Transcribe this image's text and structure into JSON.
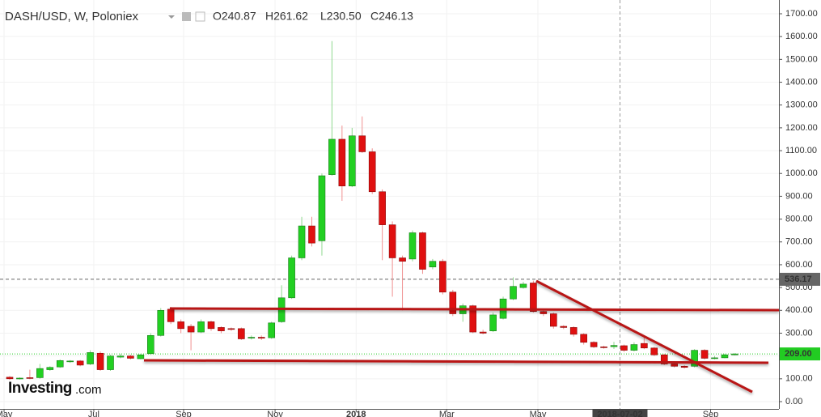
{
  "chart_data": {
    "type": "candlestick",
    "header": {
      "symbol": "DASH/USD, W, Poloniex",
      "open": "O240.87",
      "high": "H261.62",
      "low": "L230.50",
      "close": "C246.13"
    },
    "watermark": {
      "brand": "Investing",
      "suffix": ".com"
    },
    "ohlc": {
      "open": [
        107,
        100,
        105,
        105,
        140,
        152,
        175,
        178,
        165,
        212,
        140,
        195,
        200,
        188,
        210,
        290,
        405,
        350,
        330,
        305,
        350,
        325,
        320,
        320,
        280,
        282,
        280,
        350,
        455,
        630,
        770,
        705,
        995,
        1150,
        945,
        1165,
        1095,
        920,
        775,
        630,
        625,
        740,
        590,
        615,
        480,
        385,
        420,
        305,
        310,
        365,
        450,
        500,
        520,
        395,
        385,
        330,
        325,
        295,
        260,
        240,
        240.87,
        245,
        225,
        255,
        235,
        205,
        165,
        155,
        155,
        225,
        190,
        192,
        205
      ],
      "high": [
        112,
        106,
        140,
        165,
        155,
        185,
        182,
        182,
        225,
        220,
        205,
        210,
        205,
        210,
        300,
        410,
        415,
        360,
        340,
        360,
        355,
        330,
        325,
        325,
        290,
        290,
        350,
        510,
        640,
        810,
        810,
        1000,
        1580,
        1210,
        1200,
        1250,
        1110,
        930,
        790,
        640,
        750,
        745,
        625,
        625,
        490,
        430,
        425,
        315,
        390,
        460,
        545,
        525,
        530,
        400,
        390,
        335,
        330,
        300,
        265,
        245,
        261.62,
        250,
        260,
        290,
        240,
        210,
        170,
        160,
        230,
        230,
        200,
        210,
        212
      ],
      "low": [
        95,
        97,
        98,
        100,
        135,
        148,
        170,
        155,
        160,
        135,
        135,
        190,
        185,
        185,
        205,
        285,
        340,
        300,
        225,
        300,
        310,
        300,
        310,
        270,
        272,
        270,
        275,
        345,
        450,
        620,
        680,
        640,
        990,
        880,
        940,
        1090,
        910,
        620,
        460,
        400,
        615,
        560,
        580,
        470,
        375,
        350,
        300,
        295,
        305,
        360,
        445,
        495,
        390,
        375,
        320,
        318,
        285,
        250,
        235,
        232,
        230.5,
        218,
        220,
        230,
        200,
        160,
        150,
        145,
        150,
        185,
        185,
        190,
        203
      ],
      "close": [
        100,
        103,
        102,
        145,
        150,
        180,
        178,
        160,
        215,
        140,
        200,
        200,
        190,
        205,
        290,
        400,
        350,
        320,
        305,
        350,
        320,
        310,
        318,
        275,
        282,
        278,
        345,
        455,
        630,
        770,
        695,
        990,
        1150,
        945,
        1165,
        1095,
        920,
        775,
        630,
        615,
        740,
        580,
        615,
        480,
        385,
        420,
        305,
        300,
        380,
        450,
        505,
        515,
        395,
        385,
        330,
        325,
        295,
        260,
        240,
        238,
        246.13,
        225,
        250,
        235,
        205,
        165,
        155,
        150,
        225,
        190,
        192,
        205,
        209
      ]
    },
    "up_color": "#22d022",
    "down_color": "#e01010",
    "ylim": [
      0,
      1700
    ],
    "yticks": [
      {
        "value": 0,
        "label": "0.00"
      },
      {
        "value": 100,
        "label": "100.00"
      },
      {
        "value": 200,
        "label": "200.00"
      },
      {
        "value": 300,
        "label": "300.00"
      },
      {
        "value": 400,
        "label": "400.00"
      },
      {
        "value": 500,
        "label": "500.00"
      },
      {
        "value": 600,
        "label": "600.00"
      },
      {
        "value": 700,
        "label": "700.00"
      },
      {
        "value": 800,
        "label": "800.00"
      },
      {
        "value": 900,
        "label": "900.00"
      },
      {
        "value": 1000,
        "label": "1000.00"
      },
      {
        "value": 1100,
        "label": "1100.00"
      },
      {
        "value": 1200,
        "label": "1200.00"
      },
      {
        "value": 1300,
        "label": "1300.00"
      },
      {
        "value": 1400,
        "label": "1400.00"
      },
      {
        "value": 1500,
        "label": "1500.00"
      },
      {
        "value": 1600,
        "label": "1600.00"
      },
      {
        "value": 1700,
        "label": "1700.00"
      }
    ],
    "xticks": [
      {
        "value": -0.56,
        "label": "May"
      },
      {
        "value": 8.35,
        "label": "Jul"
      },
      {
        "value": 17.27,
        "label": "Sep"
      },
      {
        "value": 26.35,
        "label": "Nov"
      },
      {
        "value": 34.4,
        "label": "2018"
      },
      {
        "value": 43.4,
        "label": "Mar"
      },
      {
        "value": 52.45,
        "label": "May"
      },
      {
        "value": 69.6,
        "label": "Sep"
      }
    ],
    "crosshair": {
      "value": 60.6,
      "label": "2018-07-02"
    },
    "price_lines": [
      {
        "value": 536.17,
        "label": "536.17",
        "color": "#666666"
      },
      {
        "value": 209,
        "label": "209.00",
        "color": "#22cc22"
      }
    ]
  }
}
